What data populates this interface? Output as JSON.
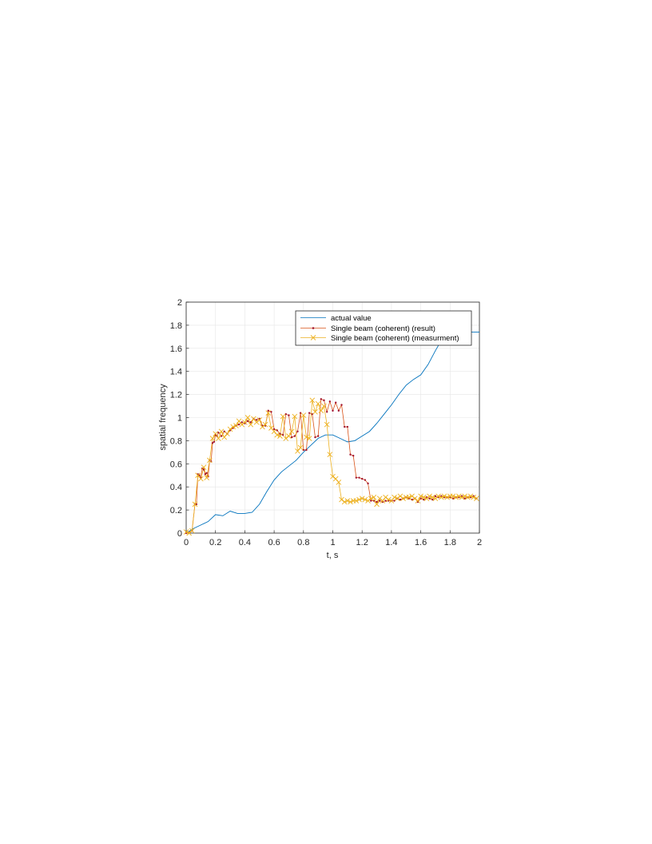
{
  "chart_data": {
    "type": "line",
    "title": "",
    "xlabel": "t, s",
    "ylabel": "spatial frequency",
    "xlim": [
      0,
      2
    ],
    "ylim": [
      0,
      2
    ],
    "xticks": [
      0,
      0.2,
      0.4,
      0.6,
      0.8,
      1,
      1.2,
      1.4,
      1.6,
      1.8,
      2
    ],
    "xtick_labels": [
      "0",
      "0.2",
      "0.4",
      "0.6",
      "0.8",
      "1",
      "1.2",
      "1.4",
      "1.6",
      "1.8",
      "2"
    ],
    "yticks": [
      0,
      0.2,
      0.4,
      0.6,
      0.8,
      1,
      1.2,
      1.4,
      1.6,
      1.8,
      2
    ],
    "ytick_labels": [
      "0",
      "0.2",
      "0.4",
      "0.6",
      "0.8",
      "1",
      "1.2",
      "1.4",
      "1.6",
      "1.8",
      "2"
    ],
    "grid": true,
    "legend_position": "top-right",
    "series": [
      {
        "name": "actual value",
        "color": "#0072BD",
        "marker": "none",
        "x": [
          0,
          0.05,
          0.1,
          0.15,
          0.2,
          0.25,
          0.3,
          0.35,
          0.4,
          0.45,
          0.5,
          0.55,
          0.6,
          0.65,
          0.7,
          0.75,
          0.8,
          0.85,
          0.9,
          0.95,
          1.0,
          1.05,
          1.1,
          1.15,
          1.2,
          1.25,
          1.3,
          1.35,
          1.4,
          1.45,
          1.5,
          1.55,
          1.6,
          1.65,
          1.7,
          1.75,
          1.8,
          1.85,
          1.9,
          1.95,
          2.0
        ],
        "y": [
          0,
          0.04,
          0.07,
          0.1,
          0.16,
          0.15,
          0.19,
          0.17,
          0.17,
          0.18,
          0.25,
          0.36,
          0.46,
          0.53,
          0.58,
          0.63,
          0.7,
          0.76,
          0.82,
          0.85,
          0.85,
          0.82,
          0.79,
          0.8,
          0.84,
          0.88,
          0.95,
          1.03,
          1.11,
          1.2,
          1.28,
          1.33,
          1.37,
          1.46,
          1.58,
          1.69,
          1.75,
          1.77,
          1.76,
          1.74,
          1.74
        ]
      },
      {
        "name": "Single beam (coherent) (result)",
        "color": "#D95319",
        "marker": "dot",
        "x": [
          0,
          0.04,
          0.06,
          0.07,
          0.08,
          0.09,
          0.1,
          0.11,
          0.12,
          0.13,
          0.14,
          0.15,
          0.16,
          0.17,
          0.18,
          0.19,
          0.2,
          0.21,
          0.22,
          0.24,
          0.26,
          0.28,
          0.3,
          0.32,
          0.34,
          0.36,
          0.38,
          0.4,
          0.42,
          0.44,
          0.46,
          0.48,
          0.5,
          0.52,
          0.54,
          0.56,
          0.58,
          0.6,
          0.62,
          0.64,
          0.66,
          0.68,
          0.7,
          0.72,
          0.74,
          0.76,
          0.78,
          0.8,
          0.82,
          0.84,
          0.86,
          0.88,
          0.9,
          0.92,
          0.94,
          0.96,
          0.98,
          1.0,
          1.02,
          1.04,
          1.06,
          1.08,
          1.1,
          1.12,
          1.14,
          1.16,
          1.18,
          1.2,
          1.22,
          1.24,
          1.26,
          1.28,
          1.3,
          1.32,
          1.34,
          1.36,
          1.38,
          1.4,
          1.42,
          1.44,
          1.46,
          1.48,
          1.5,
          1.52,
          1.54,
          1.56,
          1.58,
          1.6,
          1.62,
          1.64,
          1.66,
          1.68,
          1.7,
          1.72,
          1.74,
          1.76,
          1.78,
          1.8,
          1.82,
          1.84,
          1.86,
          1.88,
          1.9,
          1.92,
          1.94,
          1.96,
          1.98
        ],
        "y": [
          0,
          0.02,
          0.25,
          0.25,
          0.51,
          0.5,
          0.48,
          0.56,
          0.55,
          0.51,
          0.52,
          0.49,
          0.63,
          0.62,
          0.78,
          0.79,
          0.85,
          0.84,
          0.87,
          0.84,
          0.88,
          0.86,
          0.89,
          0.91,
          0.93,
          0.94,
          0.96,
          0.95,
          0.97,
          0.96,
          0.99,
          0.98,
          0.99,
          0.93,
          0.93,
          1.06,
          1.05,
          0.9,
          0.89,
          0.86,
          0.85,
          1.03,
          1.02,
          0.83,
          0.84,
          0.88,
          1.04,
          0.72,
          0.72,
          1.04,
          1.03,
          0.83,
          0.84,
          1.16,
          1.15,
          1.05,
          1.14,
          1.06,
          1.13,
          1.06,
          1.11,
          0.92,
          0.92,
          0.68,
          0.67,
          0.48,
          0.48,
          0.47,
          0.46,
          0.43,
          0.28,
          0.28,
          0.27,
          0.28,
          0.27,
          0.28,
          0.28,
          0.28,
          0.28,
          0.3,
          0.29,
          0.3,
          0.31,
          0.3,
          0.29,
          0.3,
          0.27,
          0.3,
          0.29,
          0.31,
          0.3,
          0.29,
          0.32,
          0.31,
          0.32,
          0.31,
          0.31,
          0.31,
          0.3,
          0.31,
          0.31,
          0.32,
          0.3,
          0.31,
          0.31,
          0.32,
          0.3
        ]
      },
      {
        "name": "Single beam (coherent) (measurment)",
        "color": "#EDB120",
        "marker": "x",
        "x": [
          0,
          0.02,
          0.04,
          0.06,
          0.08,
          0.1,
          0.12,
          0.14,
          0.16,
          0.18,
          0.2,
          0.22,
          0.24,
          0.26,
          0.28,
          0.3,
          0.32,
          0.34,
          0.36,
          0.38,
          0.4,
          0.42,
          0.44,
          0.46,
          0.48,
          0.5,
          0.52,
          0.54,
          0.56,
          0.58,
          0.6,
          0.62,
          0.64,
          0.66,
          0.68,
          0.7,
          0.72,
          0.74,
          0.76,
          0.78,
          0.8,
          0.82,
          0.84,
          0.86,
          0.88,
          0.9,
          0.92,
          0.94,
          0.96,
          0.98,
          1.0,
          1.02,
          1.04,
          1.06,
          1.08,
          1.1,
          1.12,
          1.14,
          1.16,
          1.18,
          1.2,
          1.22,
          1.24,
          1.26,
          1.28,
          1.3,
          1.32,
          1.34,
          1.36,
          1.38,
          1.4,
          1.42,
          1.44,
          1.46,
          1.48,
          1.5,
          1.52,
          1.54,
          1.56,
          1.58,
          1.6,
          1.62,
          1.64,
          1.66,
          1.68,
          1.7,
          1.72,
          1.74,
          1.76,
          1.78,
          1.8,
          1.82,
          1.84,
          1.86,
          1.88,
          1.9,
          1.92,
          1.94,
          1.96,
          1.98
        ],
        "y": [
          0.01,
          0.0,
          0.02,
          0.25,
          0.5,
          0.47,
          0.57,
          0.48,
          0.63,
          0.82,
          0.86,
          0.82,
          0.88,
          0.83,
          0.86,
          0.9,
          0.92,
          0.93,
          0.97,
          0.94,
          0.96,
          1.0,
          0.94,
          0.99,
          0.96,
          0.98,
          0.92,
          0.94,
          1.04,
          0.91,
          0.88,
          0.85,
          0.84,
          1.01,
          0.82,
          0.84,
          0.88,
          1.01,
          0.71,
          0.74,
          1.02,
          0.83,
          0.82,
          1.15,
          1.05,
          1.12,
          1.06,
          1.1,
          0.94,
          0.68,
          0.49,
          0.47,
          0.44,
          0.29,
          0.27,
          0.28,
          0.27,
          0.28,
          0.28,
          0.29,
          0.3,
          0.29,
          0.28,
          0.3,
          0.31,
          0.25,
          0.3,
          0.28,
          0.31,
          0.29,
          0.28,
          0.31,
          0.3,
          0.32,
          0.3,
          0.31,
          0.31,
          0.32,
          0.3,
          0.28,
          0.32,
          0.31,
          0.3,
          0.32,
          0.31,
          0.3,
          0.32,
          0.31,
          0.32,
          0.31,
          0.32,
          0.32,
          0.31,
          0.32,
          0.31,
          0.32,
          0.31,
          0.32,
          0.31,
          0.3
        ]
      }
    ]
  }
}
